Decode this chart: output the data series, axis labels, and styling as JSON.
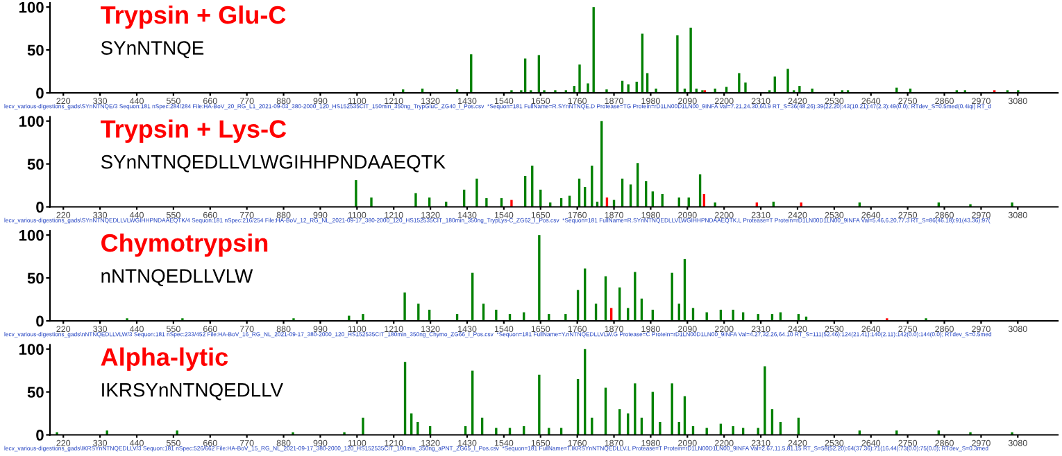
{
  "chart_data": [
    {
      "type": "bar",
      "title": "Trypsin + Glu-C",
      "subtitle": "SYnNTNQE",
      "xlim": [
        180,
        3200
      ],
      "ylim": [
        0,
        105
      ],
      "yticks": [
        0,
        50,
        100
      ],
      "xticks": [
        220,
        330,
        440,
        550,
        660,
        770,
        880,
        990,
        1100,
        1210,
        1320,
        1430,
        1540,
        1650,
        1760,
        1870,
        1980,
        2090,
        2200,
        2310,
        2420,
        2530,
        2640,
        2750,
        2860,
        2970,
        3080
      ],
      "grid": false,
      "legend": false,
      "x": [
        1238,
        1296,
        1400,
        1442,
        1563,
        1592,
        1604,
        1621,
        1645,
        1661,
        1694,
        1726,
        1751,
        1767,
        1792,
        1809,
        1848,
        1895,
        1913,
        1938,
        1955,
        1970,
        1996,
        2060,
        2082,
        2100,
        2117,
        2135,
        2142,
        2173,
        2207,
        2245,
        2264,
        2336,
        2352,
        2391,
        2409,
        2426,
        2464,
        2554,
        2571,
        2717,
        2758,
        2897,
        2922,
        3010,
        3049,
        3081
      ],
      "values": [
        4,
        5,
        4,
        45,
        3,
        3,
        40,
        3,
        44,
        3,
        3,
        3,
        8,
        33,
        11,
        100,
        4,
        14,
        10,
        13,
        69,
        23,
        5,
        67,
        5,
        76,
        5,
        3,
        3,
        5,
        7,
        23,
        12,
        3,
        19,
        28,
        3,
        8,
        5,
        3,
        3,
        6,
        5,
        3,
        3,
        3,
        3,
        3
      ],
      "colors": [
        "#008000",
        "#008000",
        "#008000",
        "#008000",
        "#008000",
        "#008000",
        "#008000",
        "#008000",
        "#008000",
        "#008000",
        "#008000",
        "#008000",
        "#008000",
        "#008000",
        "#008000",
        "#008000",
        "#008000",
        "#008000",
        "#008000",
        "#008000",
        "#008000",
        "#008000",
        "#008000",
        "#008000",
        "#008000",
        "#008000",
        "#008000",
        "#008000",
        "#ff0000",
        "#008000",
        "#008000",
        "#008000",
        "#008000",
        "#008000",
        "#008000",
        "#008000",
        "#008000",
        "#008000",
        "#008000",
        "#008000",
        "#008000",
        "#008000",
        "#008000",
        "#008000",
        "#008000",
        "#ff0000",
        "#008000",
        "#008000"
      ],
      "annotations": [
        "lecv_various-digestions_gads\\SYnNTNQE/3 Sequon:181 nSpec:284/284 File:HA-BoV_20_RG_L1_2021-09-03_380-2000_120_HS152535CIT_150min_350ng_TrypGluC_ZG40_I_Pos.csv  *Sequon=181 FullName=R.SYnNTNQE.D Protease=TG Protein=rD1LN00D1LN00_9INFA Val=7.21,24.30,60.9 RT_S=36(48.26):39(22.20):43(10.21):47(2.3):49(0.0); RTdev_S=0.5med(0.4iqi) RT_d"
      ]
    },
    {
      "type": "bar",
      "title": "Trypsin + Lys-C",
      "subtitle": "SYnNTNQEDLLVLWGIHHPNDAAEQTK",
      "xlim": [
        180,
        3200
      ],
      "ylim": [
        0,
        105
      ],
      "yticks": [
        0,
        50,
        100
      ],
      "xticks": [
        220,
        330,
        440,
        550,
        660,
        770,
        880,
        990,
        1100,
        1210,
        1320,
        1430,
        1540,
        1650,
        1760,
        1870,
        1980,
        2090,
        2200,
        2310,
        2420,
        2530,
        2640,
        2750,
        2860,
        2970,
        3080
      ],
      "grid": false,
      "legend": false,
      "x": [
        1097,
        1143,
        1276,
        1317,
        1367,
        1421,
        1459,
        1488,
        1533,
        1563,
        1604,
        1625,
        1650,
        1679,
        1712,
        1737,
        1766,
        1783,
        1804,
        1820,
        1833,
        1849,
        1870,
        1895,
        1920,
        1941,
        1966,
        1986,
        2015,
        2065,
        2094,
        2128,
        2140,
        2173,
        2298,
        2348,
        2431,
        2606,
        2843,
        2938,
        3063
      ],
      "values": [
        31,
        11,
        16,
        11,
        6,
        20,
        33,
        10,
        10,
        8,
        36,
        48,
        20,
        5,
        10,
        13,
        33,
        23,
        48,
        6,
        100,
        11,
        8,
        33,
        26,
        51,
        30,
        18,
        15,
        11,
        11,
        38,
        15,
        5,
        5,
        6,
        5,
        5,
        5,
        3,
        5
      ],
      "colors": [
        "#008000",
        "#008000",
        "#008000",
        "#008000",
        "#008000",
        "#008000",
        "#008000",
        "#008000",
        "#008000",
        "#ff0000",
        "#008000",
        "#008000",
        "#008000",
        "#008000",
        "#008000",
        "#008000",
        "#008000",
        "#008000",
        "#008000",
        "#008000",
        "#008000",
        "#ff0000",
        "#008000",
        "#008000",
        "#008000",
        "#008000",
        "#008000",
        "#008000",
        "#008000",
        "#008000",
        "#008000",
        "#008000",
        "#ff0000",
        "#008000",
        "#ff0000",
        "#008000",
        "#ff0000",
        "#008000",
        "#008000",
        "#008000",
        "#008000"
      ],
      "annotations": [
        "lecv_various-digestions_gads\\SYnNTNQEDLLVLWGIHHPNDAAEQTK/4 Sequon:181 nSpec:216/254 File:HA-BoV_12_RG_NL_2021-09-17_380-2000_120_HS152535CIT_180min_350ng_TrypLys-C_ZG62_I_Pos.csv  *Sequon=181 FullName=R.SYnNTNQEDLLVLWGIHHPNDAAEQTK.L Protease=T Protein=rD1LN00D1LN00_9INFA Val=5.46,6.20,77.3 RT_S=86(46.18):91(43.36):97("
      ]
    },
    {
      "type": "bar",
      "title": "Chymotrypsin",
      "subtitle": "nNTNQEDLLVLW",
      "xlim": [
        180,
        3200
      ],
      "ylim": [
        0,
        105
      ],
      "yticks": [
        0,
        50,
        100
      ],
      "xticks": [
        220,
        330,
        440,
        550,
        660,
        770,
        880,
        990,
        1100,
        1210,
        1320,
        1430,
        1540,
        1650,
        1760,
        1870,
        1980,
        2090,
        2200,
        2310,
        2420,
        2530,
        2640,
        2750,
        2860,
        2970,
        3080
      ],
      "grid": false,
      "legend": false,
      "x": [
        411,
        577,
        910,
        1076,
        1118,
        1243,
        1284,
        1317,
        1400,
        1446,
        1479,
        1517,
        1558,
        1600,
        1646,
        1675,
        1725,
        1762,
        1783,
        1816,
        1845,
        1862,
        1887,
        1912,
        1933,
        1953,
        1986,
        2044,
        2065,
        2082,
        2107,
        2148,
        2190,
        2227,
        2257,
        2302,
        2344,
        2369,
        2423,
        2446,
        2688,
        2805
      ],
      "values": [
        3,
        3,
        3,
        6,
        8,
        33,
        20,
        13,
        8,
        56,
        20,
        13,
        8,
        10,
        100,
        8,
        8,
        36,
        61,
        20,
        52,
        15,
        39,
        15,
        57,
        26,
        13,
        56,
        20,
        72,
        15,
        10,
        13,
        13,
        10,
        8,
        8,
        10,
        8,
        5,
        3,
        3
      ],
      "colors": [
        "#008000",
        "#008000",
        "#008000",
        "#008000",
        "#008000",
        "#008000",
        "#008000",
        "#008000",
        "#008000",
        "#008000",
        "#008000",
        "#008000",
        "#008000",
        "#008000",
        "#008000",
        "#008000",
        "#008000",
        "#008000",
        "#008000",
        "#008000",
        "#008000",
        "#ff0000",
        "#008000",
        "#008000",
        "#008000",
        "#008000",
        "#008000",
        "#008000",
        "#008000",
        "#008000",
        "#008000",
        "#008000",
        "#008000",
        "#008000",
        "#008000",
        "#008000",
        "#008000",
        "#008000",
        "#008000",
        "#008000",
        "#ff0000",
        "#008000"
      ],
      "annotations": [
        "lecv_various-digestions_gads\\nNTNQEDLLVLW/3 Sequon:181 nSpec:233/452 File:HA-BoV_16_RG_NL_2021-09-17_380-2000_120_HS152535CIT_180min_350ng_Chymo_ZG66_I_Pos.csv  *Sequon=181 FullName=Y.nNTNQEDLLVLW.G Protease=C Protein=rD1LN00D1LN00_9INFA Val=4.27,32.26,64.10 RT_S=111(52.46):124(21.41):140(2.11):142(0.0):144(0.0); RTdev_S=0.5med"
      ]
    },
    {
      "type": "bar",
      "title": "Alpha-lytic",
      "subtitle": "IKRSYnNTNQEDLLV",
      "xlim": [
        180,
        3200
      ],
      "ylim": [
        0,
        105
      ],
      "yticks": [
        0,
        50,
        100
      ],
      "xticks": [
        220,
        330,
        440,
        550,
        660,
        770,
        880,
        990,
        1100,
        1210,
        1320,
        1430,
        1540,
        1650,
        1760,
        1870,
        1980,
        2090,
        2200,
        2310,
        2420,
        2530,
        2640,
        2750,
        2860,
        2970,
        3080
      ],
      "grid": false,
      "legend": false,
      "x": [
        201,
        351,
        561,
        908,
        1062,
        1118,
        1244,
        1263,
        1282,
        1319,
        1425,
        1446,
        1475,
        1517,
        1558,
        1600,
        1646,
        1675,
        1712,
        1762,
        1783,
        1804,
        1845,
        1887,
        1912,
        1933,
        1953,
        1986,
        2008,
        2044,
        2065,
        2082,
        2107,
        2148,
        2190,
        2227,
        2257,
        2302,
        2322,
        2344,
        2369,
        2423,
        2606,
        2717,
        2843,
        2938,
        3063
      ],
      "values": [
        3,
        5,
        5,
        3,
        3,
        20,
        85,
        25,
        15,
        10,
        10,
        75,
        20,
        8,
        8,
        10,
        70,
        8,
        8,
        65,
        100,
        20,
        55,
        30,
        25,
        60,
        20,
        50,
        15,
        60,
        15,
        45,
        10,
        8,
        13,
        10,
        8,
        8,
        80,
        30,
        15,
        20,
        5,
        5,
        5,
        3,
        3
      ],
      "colors": [
        "#008000",
        "#008000",
        "#008000",
        "#008000",
        "#008000",
        "#008000",
        "#008000",
        "#008000",
        "#008000",
        "#008000",
        "#008000",
        "#008000",
        "#008000",
        "#008000",
        "#008000",
        "#008000",
        "#008000",
        "#008000",
        "#008000",
        "#008000",
        "#008000",
        "#008000",
        "#008000",
        "#008000",
        "#008000",
        "#008000",
        "#008000",
        "#008000",
        "#008000",
        "#008000",
        "#008000",
        "#008000",
        "#008000",
        "#008000",
        "#008000",
        "#008000",
        "#008000",
        "#008000",
        "#008000",
        "#008000",
        "#008000",
        "#008000",
        "#008000",
        "#008000",
        "#008000",
        "#008000",
        "#008000"
      ],
      "annotations": [
        "lecv_various-digestions_gads\\IKRSYnNTNQEDLLV/3 Sequon:181 nSpec:526/662 File:HA-BoV_15_RG_NL_2021-09-17_380-2000_120_HS152535CIT_180min_350ng_aPNT_ZG65_I_Pos.csv  *Sequon=181 FullName=T.IKRSYnNTNQEDLLV.L Protease=T Protein=rD1LN00D1LN00_9INFA Val=2.67,11.5,81.15 RT_S=58(52.20):64(37.36):71(16.44):73(0.0):75(0.0); RTdev_S=0.3med"
      ]
    }
  ]
}
